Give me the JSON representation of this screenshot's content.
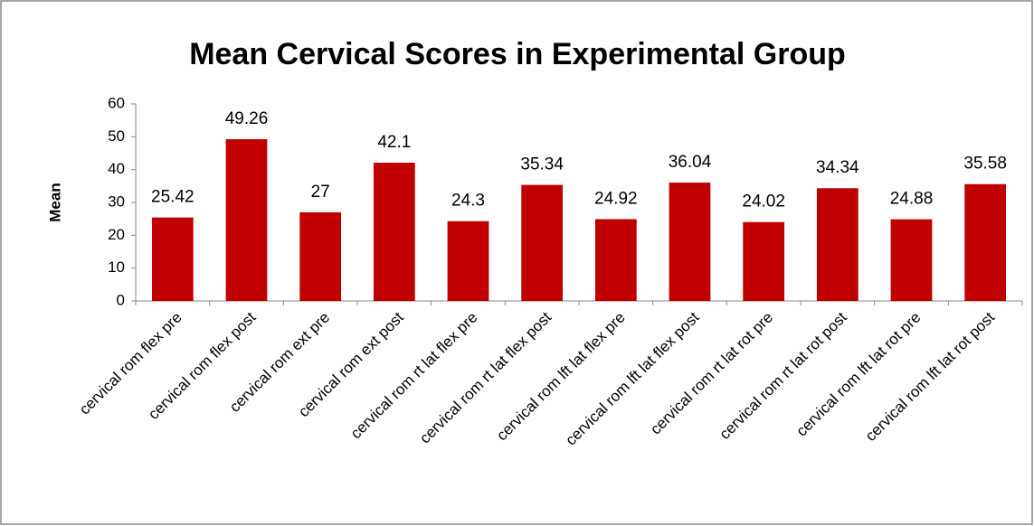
{
  "chart_data": {
    "type": "bar",
    "title": "Mean Cervical Scores in Experimental Group",
    "y_label": "Mean",
    "categories": [
      "cervical rom flex pre",
      "cervical rom flex post",
      "cervical rom ext pre",
      "cervical rom ext post",
      "cervical rom rt lat flex pre",
      "cervical rom rt lat flex post",
      "cervical rom lft lat flex pre",
      "cervical rom lft lat flex post",
      "cervical rom rt lat rot pre",
      "cervical rom rt lat rot post",
      "cervical rom lft lat rot pre",
      "cervical rom lft lat rot post"
    ],
    "values": [
      25.42,
      49.26,
      27,
      42.1,
      24.3,
      35.34,
      24.92,
      36.04,
      24.02,
      34.34,
      24.88,
      35.58
    ],
    "color": "#c00000",
    "ylim": [
      0,
      60
    ],
    "yticks": [
      0,
      10,
      20,
      30,
      40,
      50,
      60
    ],
    "grid": false
  }
}
